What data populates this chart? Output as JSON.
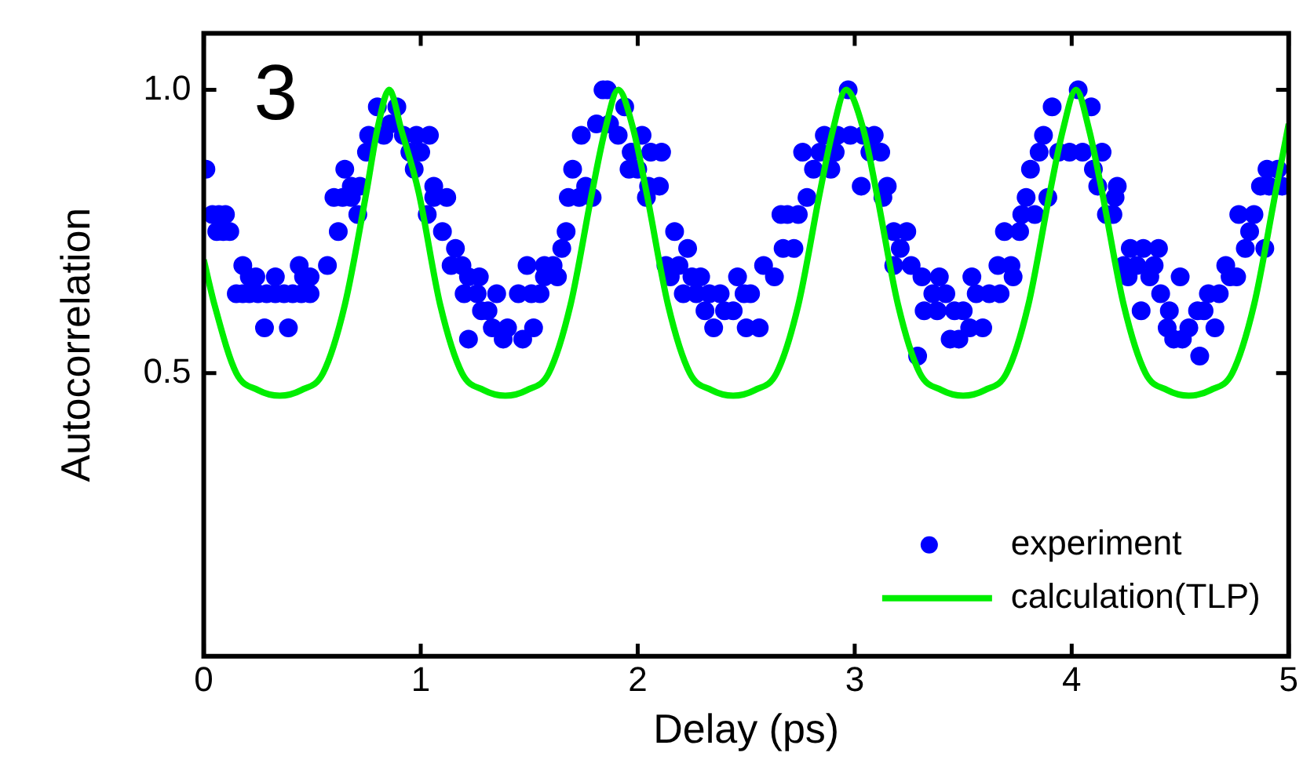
{
  "chart_data": {
    "type": "scatter",
    "xlabel": "Delay (ps)",
    "ylabel": "Autocorrelation",
    "annotations": [
      "3"
    ],
    "xlim": [
      0,
      5
    ],
    "ylim": [
      0,
      1.1
    ],
    "xticks": [
      0,
      1,
      2,
      3,
      4,
      5
    ],
    "yticks": [
      {
        "value": 0.5,
        "label": "0.5"
      },
      {
        "value": 1,
        "label": "1.0"
      }
    ],
    "grid": false,
    "legend": "bottom right",
    "marker": "circle",
    "series": [
      {
        "name": "experiment",
        "type": "scatter",
        "color": "#0000ff",
        "x": [
          0.01,
          0.04,
          0.07,
          0.1,
          0.06,
          0.09,
          0.12,
          0.18,
          0.15,
          0.18,
          0.21,
          0.25,
          0.29,
          0.33,
          0.37,
          0.41,
          0.45,
          0.49,
          0.21,
          0.24,
          0.33,
          0.46,
          0.49,
          0.44,
          0.57,
          0.28,
          0.39,
          0.62,
          0.6,
          0.64,
          0.68,
          0.71,
          0.65,
          0.68,
          0.72,
          0.75,
          0.76,
          0.83,
          0.8,
          0.86,
          0.89,
          0.92,
          0.95,
          0.98,
          1.04,
          1,
          0.97,
          1.06,
          1.06,
          1.12,
          1.03,
          1.1,
          1.16,
          1.14,
          1.19,
          1.22,
          1.27,
          1.2,
          1.26,
          1.35,
          1.22,
          1.28,
          1.31,
          1.33,
          1.38,
          1.4,
          1.47,
          1.52,
          1.45,
          1.51,
          1.55,
          1.49,
          1.57,
          1.61,
          1.57,
          1.63,
          1.65,
          1.67,
          1.68,
          1.73,
          1.79,
          1.76,
          1.7,
          1.74,
          1.81,
          1.87,
          1.84,
          1.86,
          1.94,
          1.91,
          2.02,
          1.97,
          2.06,
          2.11,
          1.96,
          2,
          2.05,
          2.1,
          2.04,
          2.17,
          2.23,
          2.13,
          2.19,
          2.15,
          2.25,
          2.29,
          2.21,
          2.27,
          2.33,
          2.38,
          2.49,
          2.52,
          2.31,
          2.4,
          2.44,
          2.35,
          2.5,
          2.56,
          2.46,
          2.58,
          2.63,
          2.67,
          2.72,
          2.66,
          2.69,
          2.74,
          2.78,
          2.81,
          2.89,
          2.76,
          2.84,
          2.91,
          2.86,
          2.92,
          2.98,
          3.04,
          3.09,
          2.97,
          3.07,
          3.12,
          3.03,
          3.15,
          3.13,
          3.18,
          3.21,
          3.24,
          3.18,
          3.26,
          3.31,
          3.39,
          3.36,
          3.42,
          3.32,
          3.38,
          3.46,
          3.5,
          3.44,
          3.48,
          3.29,
          3.53,
          3.59,
          3.54,
          3.56,
          3.62,
          3.67,
          3.66,
          3.72,
          3.73,
          3.69,
          3.76,
          3.77,
          3.83,
          3.79,
          3.89,
          3.81,
          3.85,
          3.87,
          3.91,
          3.94,
          3.99,
          4.05,
          4.14,
          4.03,
          4.09,
          4.1,
          4.12,
          4.21,
          4.2,
          4.16,
          4.19,
          4.27,
          4.33,
          4.4,
          4.24,
          4.3,
          4.38,
          4.26,
          4.36,
          4.5,
          4.32,
          4.41,
          4.45,
          4.44,
          4.54,
          4.66,
          4.47,
          4.51,
          4.59,
          4.58,
          4.61,
          4.63,
          4.68,
          4.71,
          4.73,
          4.76,
          4.77,
          4.84,
          4.8,
          4.82,
          4.89,
          4.87,
          4.91,
          4.97,
          4.9,
          4.95
        ],
        "values": [
          0.86,
          0.78,
          0.78,
          0.78,
          0.75,
          0.75,
          0.75,
          0.69,
          0.64,
          0.64,
          0.64,
          0.64,
          0.64,
          0.64,
          0.64,
          0.64,
          0.64,
          0.64,
          0.67,
          0.67,
          0.67,
          0.67,
          0.67,
          0.69,
          0.69,
          0.58,
          0.58,
          0.75,
          0.81,
          0.81,
          0.81,
          0.78,
          0.86,
          0.83,
          0.83,
          0.89,
          0.92,
          0.92,
          0.97,
          0.94,
          0.97,
          0.92,
          0.89,
          0.92,
          0.92,
          0.89,
          0.86,
          0.83,
          0.81,
          0.81,
          0.78,
          0.75,
          0.72,
          0.69,
          0.69,
          0.67,
          0.67,
          0.64,
          0.64,
          0.64,
          0.56,
          0.61,
          0.61,
          0.58,
          0.56,
          0.58,
          0.56,
          0.58,
          0.64,
          0.64,
          0.64,
          0.69,
          0.69,
          0.69,
          0.67,
          0.67,
          0.72,
          0.75,
          0.81,
          0.81,
          0.81,
          0.83,
          0.86,
          0.92,
          0.94,
          0.94,
          1,
          1,
          0.97,
          0.92,
          0.92,
          0.89,
          0.89,
          0.89,
          0.86,
          0.86,
          0.83,
          0.83,
          0.81,
          0.75,
          0.72,
          0.69,
          0.69,
          0.67,
          0.67,
          0.67,
          0.64,
          0.64,
          0.64,
          0.64,
          0.64,
          0.64,
          0.61,
          0.61,
          0.61,
          0.58,
          0.58,
          0.58,
          0.67,
          0.69,
          0.67,
          0.72,
          0.72,
          0.78,
          0.78,
          0.78,
          0.81,
          0.86,
          0.86,
          0.89,
          0.89,
          0.89,
          0.92,
          0.92,
          0.92,
          0.92,
          0.92,
          1,
          0.89,
          0.89,
          0.83,
          0.83,
          0.81,
          0.75,
          0.72,
          0.75,
          0.69,
          0.69,
          0.67,
          0.67,
          0.64,
          0.64,
          0.61,
          0.61,
          0.61,
          0.61,
          0.56,
          0.56,
          0.53,
          0.58,
          0.58,
          0.67,
          0.64,
          0.64,
          0.64,
          0.69,
          0.69,
          0.67,
          0.75,
          0.75,
          0.78,
          0.78,
          0.81,
          0.81,
          0.86,
          0.89,
          0.92,
          0.97,
          0.89,
          0.89,
          0.89,
          0.89,
          1,
          0.97,
          0.86,
          0.83,
          0.83,
          0.81,
          0.78,
          0.78,
          0.72,
          0.72,
          0.72,
          0.69,
          0.69,
          0.69,
          0.67,
          0.67,
          0.67,
          0.61,
          0.64,
          0.61,
          0.58,
          0.58,
          0.58,
          0.56,
          0.56,
          0.53,
          0.61,
          0.61,
          0.64,
          0.64,
          0.69,
          0.67,
          0.67,
          0.78,
          0.78,
          0.72,
          0.75,
          0.72,
          0.83,
          0.83,
          0.83,
          0.86,
          0.86
        ]
      },
      {
        "name": "calculation(TLP)",
        "type": "line",
        "color": "#00ee00",
        "marker": "none",
        "line_style": "solid",
        "x": [
          0,
          0.05,
          0.15,
          0.25,
          0.35,
          0.45,
          0.55,
          0.65,
          0.75,
          0.8,
          0.855,
          0.91,
          0.99,
          1.09,
          1.19,
          1.29,
          1.39,
          1.49,
          1.59,
          1.69,
          1.79,
          1.85,
          1.91,
          1.98,
          2.04,
          2.14,
          2.24,
          2.34,
          2.44,
          2.54,
          2.64,
          2.74,
          2.84,
          2.9,
          2.96,
          3.04,
          3.1,
          3.2,
          3.3,
          3.4,
          3.5,
          3.6,
          3.7,
          3.8,
          3.9,
          3.96,
          4.02,
          4.08,
          4.14,
          4.24,
          4.34,
          4.44,
          4.54,
          4.64,
          4.74,
          4.84,
          4.94,
          5
        ],
        "values": [
          0.7,
          0.62,
          0.5,
          0.47,
          0.46,
          0.47,
          0.5,
          0.62,
          0.82,
          0.93,
          1,
          0.93,
          0.82,
          0.62,
          0.5,
          0.47,
          0.46,
          0.47,
          0.5,
          0.62,
          0.82,
          0.93,
          1,
          0.93,
          0.82,
          0.62,
          0.5,
          0.47,
          0.46,
          0.47,
          0.5,
          0.62,
          0.82,
          0.93,
          1,
          0.93,
          0.82,
          0.62,
          0.5,
          0.47,
          0.46,
          0.47,
          0.5,
          0.62,
          0.82,
          0.93,
          1,
          0.93,
          0.82,
          0.62,
          0.5,
          0.47,
          0.46,
          0.47,
          0.5,
          0.62,
          0.82,
          0.94
        ]
      }
    ]
  }
}
